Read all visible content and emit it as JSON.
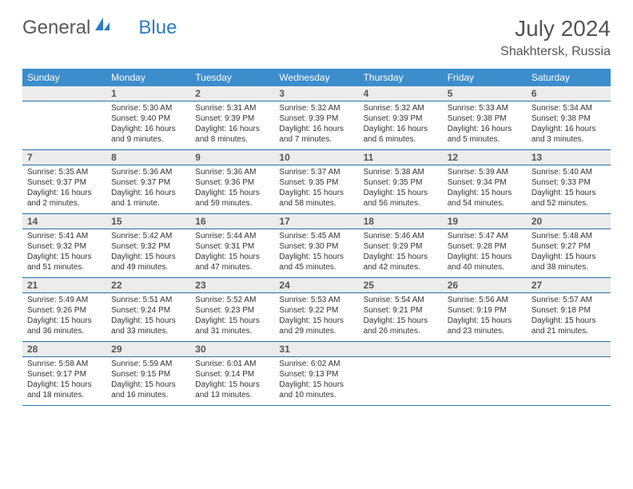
{
  "logo": {
    "part1": "General",
    "part2": "Blue"
  },
  "title": "July 2024",
  "location": "Shakhtersk, Russia",
  "colors": {
    "header_bg": "#3c8dcc",
    "header_text": "#ffffff",
    "daynum_bg": "#ececec",
    "text": "#333333",
    "row_border": "#2f6fa6",
    "logo_gray": "#5a5a5a",
    "logo_blue": "#2f7bc4"
  },
  "weekdays": [
    "Sunday",
    "Monday",
    "Tuesday",
    "Wednesday",
    "Thursday",
    "Friday",
    "Saturday"
  ],
  "weeks": [
    {
      "nums": [
        "",
        "1",
        "2",
        "3",
        "4",
        "5",
        "6"
      ],
      "cells": [
        {
          "lines": [
            "",
            "",
            "",
            ""
          ]
        },
        {
          "lines": [
            "Sunrise: 5:30 AM",
            "Sunset: 9:40 PM",
            "Daylight: 16 hours",
            "and 9 minutes."
          ]
        },
        {
          "lines": [
            "Sunrise: 5:31 AM",
            "Sunset: 9:39 PM",
            "Daylight: 16 hours",
            "and 8 minutes."
          ]
        },
        {
          "lines": [
            "Sunrise: 5:32 AM",
            "Sunset: 9:39 PM",
            "Daylight: 16 hours",
            "and 7 minutes."
          ]
        },
        {
          "lines": [
            "Sunrise: 5:32 AM",
            "Sunset: 9:39 PM",
            "Daylight: 16 hours",
            "and 6 minutes."
          ]
        },
        {
          "lines": [
            "Sunrise: 5:33 AM",
            "Sunset: 9:38 PM",
            "Daylight: 16 hours",
            "and 5 minutes."
          ]
        },
        {
          "lines": [
            "Sunrise: 5:34 AM",
            "Sunset: 9:38 PM",
            "Daylight: 16 hours",
            "and 3 minutes."
          ]
        }
      ]
    },
    {
      "nums": [
        "7",
        "8",
        "9",
        "10",
        "11",
        "12",
        "13"
      ],
      "cells": [
        {
          "lines": [
            "Sunrise: 5:35 AM",
            "Sunset: 9:37 PM",
            "Daylight: 16 hours",
            "and 2 minutes."
          ]
        },
        {
          "lines": [
            "Sunrise: 5:36 AM",
            "Sunset: 9:37 PM",
            "Daylight: 16 hours",
            "and 1 minute."
          ]
        },
        {
          "lines": [
            "Sunrise: 5:36 AM",
            "Sunset: 9:36 PM",
            "Daylight: 15 hours",
            "and 59 minutes."
          ]
        },
        {
          "lines": [
            "Sunrise: 5:37 AM",
            "Sunset: 9:35 PM",
            "Daylight: 15 hours",
            "and 58 minutes."
          ]
        },
        {
          "lines": [
            "Sunrise: 5:38 AM",
            "Sunset: 9:35 PM",
            "Daylight: 15 hours",
            "and 56 minutes."
          ]
        },
        {
          "lines": [
            "Sunrise: 5:39 AM",
            "Sunset: 9:34 PM",
            "Daylight: 15 hours",
            "and 54 minutes."
          ]
        },
        {
          "lines": [
            "Sunrise: 5:40 AM",
            "Sunset: 9:33 PM",
            "Daylight: 15 hours",
            "and 52 minutes."
          ]
        }
      ]
    },
    {
      "nums": [
        "14",
        "15",
        "16",
        "17",
        "18",
        "19",
        "20"
      ],
      "cells": [
        {
          "lines": [
            "Sunrise: 5:41 AM",
            "Sunset: 9:32 PM",
            "Daylight: 15 hours",
            "and 51 minutes."
          ]
        },
        {
          "lines": [
            "Sunrise: 5:42 AM",
            "Sunset: 9:32 PM",
            "Daylight: 15 hours",
            "and 49 minutes."
          ]
        },
        {
          "lines": [
            "Sunrise: 5:44 AM",
            "Sunset: 9:31 PM",
            "Daylight: 15 hours",
            "and 47 minutes."
          ]
        },
        {
          "lines": [
            "Sunrise: 5:45 AM",
            "Sunset: 9:30 PM",
            "Daylight: 15 hours",
            "and 45 minutes."
          ]
        },
        {
          "lines": [
            "Sunrise: 5:46 AM",
            "Sunset: 9:29 PM",
            "Daylight: 15 hours",
            "and 42 minutes."
          ]
        },
        {
          "lines": [
            "Sunrise: 5:47 AM",
            "Sunset: 9:28 PM",
            "Daylight: 15 hours",
            "and 40 minutes."
          ]
        },
        {
          "lines": [
            "Sunrise: 5:48 AM",
            "Sunset: 9:27 PM",
            "Daylight: 15 hours",
            "and 38 minutes."
          ]
        }
      ]
    },
    {
      "nums": [
        "21",
        "22",
        "23",
        "24",
        "25",
        "26",
        "27"
      ],
      "cells": [
        {
          "lines": [
            "Sunrise: 5:49 AM",
            "Sunset: 9:26 PM",
            "Daylight: 15 hours",
            "and 36 minutes."
          ]
        },
        {
          "lines": [
            "Sunrise: 5:51 AM",
            "Sunset: 9:24 PM",
            "Daylight: 15 hours",
            "and 33 minutes."
          ]
        },
        {
          "lines": [
            "Sunrise: 5:52 AM",
            "Sunset: 9:23 PM",
            "Daylight: 15 hours",
            "and 31 minutes."
          ]
        },
        {
          "lines": [
            "Sunrise: 5:53 AM",
            "Sunset: 9:22 PM",
            "Daylight: 15 hours",
            "and 29 minutes."
          ]
        },
        {
          "lines": [
            "Sunrise: 5:54 AM",
            "Sunset: 9:21 PM",
            "Daylight: 15 hours",
            "and 26 minutes."
          ]
        },
        {
          "lines": [
            "Sunrise: 5:56 AM",
            "Sunset: 9:19 PM",
            "Daylight: 15 hours",
            "and 23 minutes."
          ]
        },
        {
          "lines": [
            "Sunrise: 5:57 AM",
            "Sunset: 9:18 PM",
            "Daylight: 15 hours",
            "and 21 minutes."
          ]
        }
      ]
    },
    {
      "nums": [
        "28",
        "29",
        "30",
        "31",
        "",
        "",
        ""
      ],
      "cells": [
        {
          "lines": [
            "Sunrise: 5:58 AM",
            "Sunset: 9:17 PM",
            "Daylight: 15 hours",
            "and 18 minutes."
          ]
        },
        {
          "lines": [
            "Sunrise: 5:59 AM",
            "Sunset: 9:15 PM",
            "Daylight: 15 hours",
            "and 16 minutes."
          ]
        },
        {
          "lines": [
            "Sunrise: 6:01 AM",
            "Sunset: 9:14 PM",
            "Daylight: 15 hours",
            "and 13 minutes."
          ]
        },
        {
          "lines": [
            "Sunrise: 6:02 AM",
            "Sunset: 9:13 PM",
            "Daylight: 15 hours",
            "and 10 minutes."
          ]
        },
        {
          "lines": [
            "",
            "",
            "",
            ""
          ]
        },
        {
          "lines": [
            "",
            "",
            "",
            ""
          ]
        },
        {
          "lines": [
            "",
            "",
            "",
            ""
          ]
        }
      ]
    }
  ]
}
